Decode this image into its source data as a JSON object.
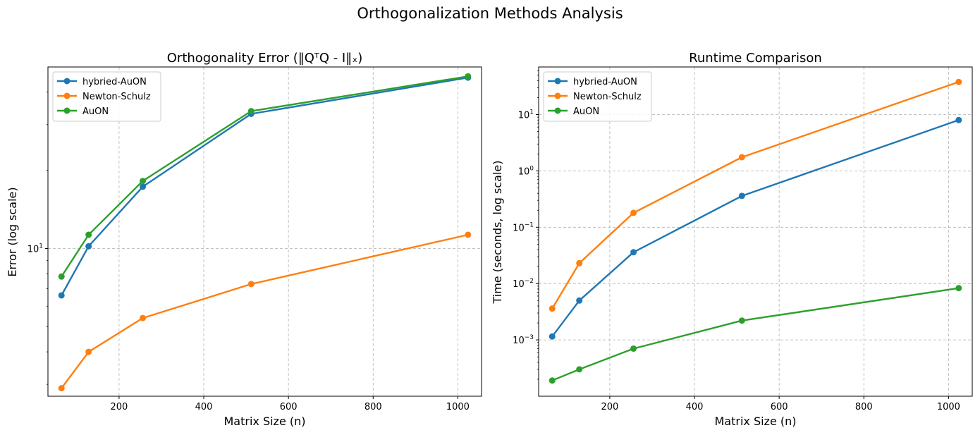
{
  "figure": {
    "title": "Orthogonalization Methods Analysis"
  },
  "chart_data": [
    {
      "type": "line",
      "title": "Orthogonality Error (‖QᵀQ - I‖ₓ)",
      "xlabel": "Matrix Size (n)",
      "ylabel": "Error (log scale)",
      "yscale": "log",
      "xlim": [
        32,
        1056
      ],
      "ylim": [
        2.7,
        50
      ],
      "xticks": [
        200,
        400,
        600,
        800,
        1000
      ],
      "yticks": [
        {
          "value": 10,
          "base": "10",
          "exp": "1"
        }
      ],
      "grid": true,
      "legend_position": "top-left",
      "x": [
        64,
        128,
        256,
        512,
        1024
      ],
      "series": [
        {
          "name": "hybried-AuON",
          "color": "#1f77b4",
          "values": [
            6.6,
            10.2,
            17.3,
            33.0,
            45.5
          ]
        },
        {
          "name": "Newton-Schulz",
          "color": "#ff7f0e",
          "values": [
            2.9,
            4.0,
            5.4,
            7.3,
            11.3
          ]
        },
        {
          "name": "AuON",
          "color": "#2ca02c",
          "values": [
            7.8,
            11.3,
            18.2,
            33.8,
            46.0
          ]
        }
      ]
    },
    {
      "type": "line",
      "title": "Runtime Comparison",
      "xlabel": "Matrix Size (n)",
      "ylabel": "Time (seconds, log scale)",
      "yscale": "log",
      "xlim": [
        32,
        1056
      ],
      "ylim": [
        0.0001,
        70
      ],
      "xticks": [
        200,
        400,
        600,
        800,
        1000
      ],
      "yticks": [
        {
          "value": 0.001,
          "base": "10",
          "exp": "−3"
        },
        {
          "value": 0.01,
          "base": "10",
          "exp": "−2"
        },
        {
          "value": 0.1,
          "base": "10",
          "exp": "−1"
        },
        {
          "value": 1,
          "base": "10",
          "exp": "0"
        },
        {
          "value": 10,
          "base": "10",
          "exp": "1"
        }
      ],
      "grid": true,
      "legend_position": "top-left",
      "x": [
        64,
        128,
        256,
        512,
        1024
      ],
      "series": [
        {
          "name": "hybried-AuON",
          "color": "#1f77b4",
          "values": [
            0.00115,
            0.005,
            0.036,
            0.36,
            8.0
          ]
        },
        {
          "name": "Newton-Schulz",
          "color": "#ff7f0e",
          "values": [
            0.0036,
            0.023,
            0.18,
            1.75,
            38.0
          ]
        },
        {
          "name": "AuON",
          "color": "#2ca02c",
          "values": [
            0.00019,
            0.0003,
            0.0007,
            0.0022,
            0.0083
          ]
        }
      ]
    }
  ]
}
